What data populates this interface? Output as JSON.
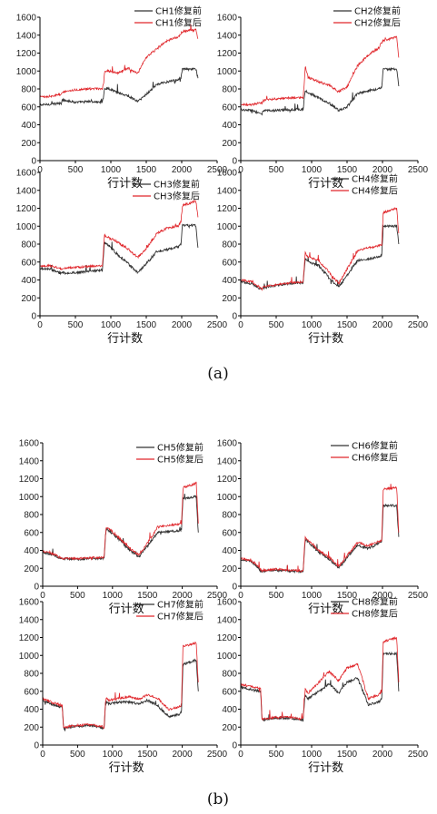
{
  "chart_data": [
    {
      "type": "line",
      "xlabel": "行计数",
      "ylabel": "",
      "xlim": [
        0,
        2500
      ],
      "ylim": [
        0,
        1600
      ],
      "xticks": [
        "0",
        "500",
        "1000",
        "1500",
        "2000",
        "2500"
      ],
      "yticks": [
        "0",
        "200",
        "400",
        "600",
        "800",
        "1000",
        "1200",
        "1400",
        "1600"
      ],
      "series": [
        {
          "name": "CH1修复前",
          "color": "#333333",
          "x": [
            0,
            150,
            300,
            320,
            500,
            700,
            880,
            900,
            910,
            950,
            1100,
            1250,
            1380,
            1500,
            1650,
            1800,
            1950,
            1990,
            2010,
            2200,
            2230
          ],
          "values": [
            620,
            630,
            640,
            680,
            650,
            660,
            650,
            730,
            800,
            810,
            760,
            720,
            660,
            740,
            850,
            880,
            900,
            930,
            1020,
            1020,
            920
          ]
        },
        {
          "name": "CH1修复后",
          "color": "#e0262b",
          "x": [
            0,
            150,
            300,
            320,
            500,
            700,
            880,
            900,
            910,
            950,
            1100,
            1250,
            1380,
            1500,
            1650,
            1800,
            1950,
            1990,
            2010,
            2200,
            2230
          ],
          "values": [
            710,
            720,
            740,
            770,
            790,
            800,
            800,
            880,
            980,
            1000,
            980,
            1030,
            970,
            1150,
            1250,
            1340,
            1380,
            1420,
            1440,
            1460,
            1360
          ]
        }
      ]
    },
    {
      "type": "line",
      "xlabel": "行计数",
      "ylabel": "",
      "xlim": [
        0,
        2500
      ],
      "ylim": [
        0,
        1600
      ],
      "xticks": [
        "0",
        "500",
        "1000",
        "1500",
        "2000",
        "2500"
      ],
      "yticks": [
        "0",
        "200",
        "400",
        "600",
        "800",
        "1000",
        "1200",
        "1400",
        "1600"
      ],
      "series": [
        {
          "name": "CH2修复前",
          "color": "#333333",
          "x": [
            0,
            150,
            300,
            320,
            500,
            700,
            880,
            900,
            910,
            950,
            1100,
            1250,
            1380,
            1500,
            1650,
            1800,
            1950,
            1990,
            2010,
            2200,
            2230
          ],
          "values": [
            570,
            560,
            520,
            560,
            560,
            570,
            570,
            720,
            780,
            760,
            700,
            640,
            560,
            600,
            750,
            780,
            800,
            820,
            1020,
            1020,
            830
          ]
        },
        {
          "name": "CH2修复后",
          "color": "#e0262b",
          "x": [
            0,
            150,
            300,
            320,
            500,
            700,
            880,
            900,
            910,
            950,
            1100,
            1250,
            1380,
            1500,
            1650,
            1800,
            1950,
            1990,
            2010,
            2200,
            2230
          ],
          "values": [
            630,
            620,
            650,
            670,
            690,
            700,
            700,
            920,
            1050,
            930,
            880,
            840,
            770,
            820,
            1060,
            1180,
            1260,
            1320,
            1340,
            1380,
            1150
          ]
        }
      ]
    },
    {
      "type": "line",
      "xlabel": "行计数",
      "ylabel": "",
      "xlim": [
        0,
        2500
      ],
      "ylim": [
        0,
        1600
      ],
      "xticks": [
        "0",
        "500",
        "1000",
        "1500",
        "2000",
        "2500"
      ],
      "yticks": [
        "0",
        "200",
        "400",
        "600",
        "800",
        "1000",
        "1200",
        "1400",
        "1600"
      ],
      "series": [
        {
          "name": "CH3修复前",
          "color": "#333333",
          "x": [
            0,
            150,
            300,
            320,
            500,
            700,
            880,
            900,
            910,
            950,
            1100,
            1250,
            1380,
            1500,
            1650,
            1800,
            1950,
            1990,
            2010,
            2200,
            2230
          ],
          "values": [
            530,
            520,
            470,
            480,
            480,
            500,
            510,
            720,
            820,
            800,
            680,
            580,
            480,
            580,
            720,
            740,
            770,
            800,
            1010,
            1010,
            760
          ]
        },
        {
          "name": "CH3修复后",
          "color": "#e0262b",
          "x": [
            0,
            150,
            300,
            320,
            500,
            700,
            880,
            900,
            910,
            950,
            1100,
            1250,
            1380,
            1500,
            1650,
            1800,
            1950,
            1990,
            2010,
            2200,
            2230
          ],
          "values": [
            560,
            560,
            520,
            530,
            540,
            550,
            560,
            780,
            900,
            880,
            820,
            740,
            650,
            750,
            920,
            980,
            1000,
            1050,
            1230,
            1280,
            1100
          ]
        }
      ]
    },
    {
      "type": "line",
      "xlabel": "行计数",
      "ylabel": "",
      "xlim": [
        0,
        2500
      ],
      "ylim": [
        0,
        1600
      ],
      "xticks": [
        "0",
        "500",
        "1000",
        "1500",
        "2000",
        "2500"
      ],
      "yticks": [
        "0",
        "200",
        "400",
        "600",
        "800",
        "1000",
        "1200",
        "1400",
        "1600"
      ],
      "series": [
        {
          "name": "CH4修复前",
          "color": "#333333",
          "x": [
            0,
            150,
            300,
            320,
            500,
            700,
            880,
            900,
            910,
            950,
            1100,
            1250,
            1380,
            1500,
            1650,
            1800,
            1950,
            1990,
            2010,
            2200,
            2230
          ],
          "values": [
            380,
            360,
            290,
            310,
            340,
            360,
            370,
            560,
            640,
            600,
            560,
            420,
            320,
            450,
            620,
            630,
            660,
            680,
            1000,
            1000,
            800
          ]
        },
        {
          "name": "CH4修复后",
          "color": "#e0262b",
          "x": [
            0,
            150,
            300,
            320,
            500,
            700,
            880,
            900,
            910,
            950,
            1100,
            1250,
            1380,
            1500,
            1650,
            1800,
            1950,
            1990,
            2010,
            2200,
            2230
          ],
          "values": [
            400,
            380,
            300,
            320,
            350,
            370,
            380,
            600,
            700,
            660,
            620,
            480,
            360,
            520,
            730,
            760,
            780,
            800,
            1150,
            1200,
            920
          ]
        }
      ]
    },
    {
      "type": "line",
      "xlabel": "行计数",
      "ylabel": "",
      "xlim": [
        0,
        2500
      ],
      "ylim": [
        0,
        1600
      ],
      "xticks": [
        "0",
        "500",
        "1000",
        "1500",
        "2000",
        "2500"
      ],
      "yticks": [
        "0",
        "200",
        "400",
        "600",
        "800",
        "1000",
        "1200",
        "1400",
        "1600"
      ],
      "series": [
        {
          "name": "CH5修复前",
          "color": "#333333",
          "x": [
            0,
            150,
            300,
            320,
            500,
            700,
            880,
            900,
            910,
            950,
            1100,
            1250,
            1380,
            1500,
            1650,
            1800,
            1950,
            1990,
            2010,
            2200,
            2230
          ],
          "values": [
            380,
            350,
            300,
            310,
            300,
            310,
            310,
            560,
            640,
            620,
            520,
            400,
            330,
            450,
            600,
            610,
            620,
            640,
            980,
            1000,
            600
          ]
        },
        {
          "name": "CH5修复后",
          "color": "#e0262b",
          "x": [
            0,
            150,
            300,
            320,
            500,
            700,
            880,
            900,
            910,
            950,
            1100,
            1250,
            1380,
            1500,
            1650,
            1800,
            1950,
            1990,
            2010,
            2200,
            2230
          ],
          "values": [
            390,
            360,
            300,
            310,
            310,
            320,
            320,
            570,
            660,
            640,
            540,
            420,
            350,
            480,
            660,
            680,
            690,
            700,
            1100,
            1150,
            700
          ]
        }
      ]
    },
    {
      "type": "line",
      "xlabel": "行计数",
      "ylabel": "",
      "xlim": [
        0,
        2500
      ],
      "ylim": [
        0,
        1600
      ],
      "xticks": [
        "0",
        "500",
        "1000",
        "1500",
        "2000",
        "2500"
      ],
      "yticks": [
        "0",
        "200",
        "400",
        "600",
        "800",
        "1000",
        "1200",
        "1400",
        "1600"
      ],
      "series": [
        {
          "name": "CH6修复前",
          "color": "#333333",
          "x": [
            0,
            150,
            300,
            320,
            500,
            700,
            880,
            900,
            910,
            950,
            1100,
            1250,
            1380,
            1500,
            1650,
            1800,
            1950,
            1990,
            2010,
            2200,
            2230
          ],
          "values": [
            300,
            280,
            160,
            170,
            180,
            170,
            160,
            420,
            520,
            500,
            380,
            300,
            200,
            320,
            460,
            420,
            480,
            500,
            900,
            900,
            550
          ]
        },
        {
          "name": "CH6修复后",
          "color": "#e0262b",
          "x": [
            0,
            150,
            300,
            320,
            500,
            700,
            880,
            900,
            910,
            950,
            1100,
            1250,
            1380,
            1500,
            1650,
            1800,
            1950,
            1990,
            2010,
            2200,
            2230
          ],
          "values": [
            310,
            290,
            170,
            180,
            190,
            180,
            170,
            440,
            540,
            520,
            400,
            320,
            220,
            340,
            490,
            450,
            500,
            520,
            1080,
            1100,
            600
          ]
        }
      ]
    },
    {
      "type": "line",
      "xlabel": "行计数",
      "ylabel": "",
      "xlim": [
        0,
        2500
      ],
      "ylim": [
        0,
        1600
      ],
      "xticks": [
        "0",
        "500",
        "1000",
        "1500",
        "2000",
        "2500"
      ],
      "yticks": [
        "0",
        "200",
        "400",
        "600",
        "800",
        "1000",
        "1200",
        "1400",
        "1600"
      ],
      "series": [
        {
          "name": "CH7修复前",
          "color": "#333333",
          "x": [
            0,
            150,
            280,
            300,
            500,
            700,
            880,
            900,
            910,
            950,
            1100,
            1250,
            1380,
            1500,
            1650,
            1800,
            1950,
            1990,
            2010,
            2200,
            2230
          ],
          "values": [
            500,
            450,
            420,
            190,
            210,
            220,
            190,
            450,
            480,
            460,
            480,
            480,
            460,
            500,
            440,
            320,
            340,
            380,
            900,
            950,
            600
          ]
        },
        {
          "name": "CH7修复后",
          "color": "#e0262b",
          "x": [
            0,
            150,
            280,
            300,
            500,
            700,
            880,
            900,
            910,
            950,
            1100,
            1250,
            1380,
            1500,
            1650,
            1800,
            1950,
            1990,
            2010,
            2200,
            2230
          ],
          "values": [
            520,
            470,
            440,
            200,
            220,
            230,
            200,
            480,
            520,
            500,
            520,
            540,
            510,
            560,
            520,
            400,
            420,
            450,
            1100,
            1140,
            700
          ]
        }
      ]
    },
    {
      "type": "line",
      "xlabel": "行计数",
      "ylabel": "",
      "xlim": [
        0,
        2500
      ],
      "ylim": [
        0,
        1600
      ],
      "xticks": [
        "0",
        "500",
        "1000",
        "1500",
        "2000",
        "2500"
      ],
      "yticks": [
        "0",
        "200",
        "400",
        "600",
        "800",
        "1000",
        "1200",
        "1400",
        "1600"
      ],
      "series": [
        {
          "name": "CH8修复前",
          "color": "#333333",
          "x": [
            0,
            150,
            280,
            300,
            500,
            700,
            880,
            900,
            910,
            950,
            1100,
            1250,
            1380,
            1500,
            1650,
            1800,
            1950,
            1990,
            2010,
            2200,
            2230
          ],
          "values": [
            650,
            620,
            600,
            280,
            300,
            300,
            280,
            500,
            560,
            520,
            600,
            680,
            580,
            700,
            750,
            450,
            480,
            520,
            1020,
            1020,
            600
          ]
        },
        {
          "name": "CH8修复后",
          "color": "#e0262b",
          "x": [
            0,
            150,
            280,
            300,
            500,
            700,
            880,
            900,
            910,
            950,
            1100,
            1250,
            1380,
            1500,
            1650,
            1800,
            1950,
            1990,
            2010,
            2200,
            2230
          ],
          "values": [
            680,
            650,
            630,
            290,
            310,
            310,
            290,
            540,
            620,
            580,
            700,
            820,
            720,
            860,
            900,
            520,
            560,
            600,
            1150,
            1200,
            700
          ]
        }
      ]
    }
  ],
  "captions": [
    "(a)",
    "(b)"
  ]
}
